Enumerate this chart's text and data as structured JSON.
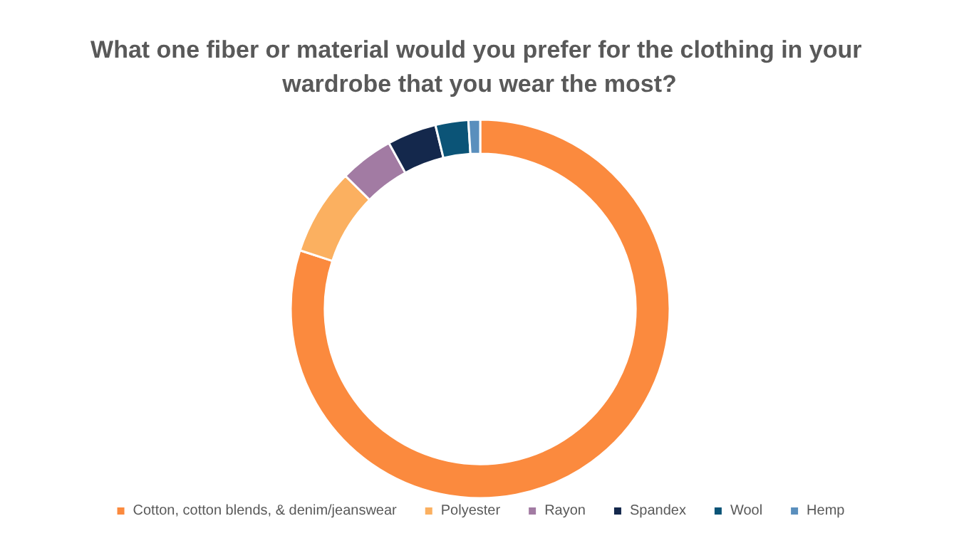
{
  "chart_data": {
    "type": "donut",
    "title": "What one fiber or material would you prefer for the clothing in your wardrobe that you wear the most?",
    "categories": [
      "Cotton, cotton blends, & denim/jeanswear",
      "Polyester",
      "Rayon",
      "Spandex",
      "Wool",
      "Hemp"
    ],
    "values": [
      80,
      7.4,
      4.6,
      4.2,
      2.8,
      1
    ],
    "colors": [
      "#fb8a3e",
      "#fbb060",
      "#a27ba3",
      "#14284c",
      "#0b5477",
      "#5a8fbd"
    ],
    "legend": "bottom"
  }
}
